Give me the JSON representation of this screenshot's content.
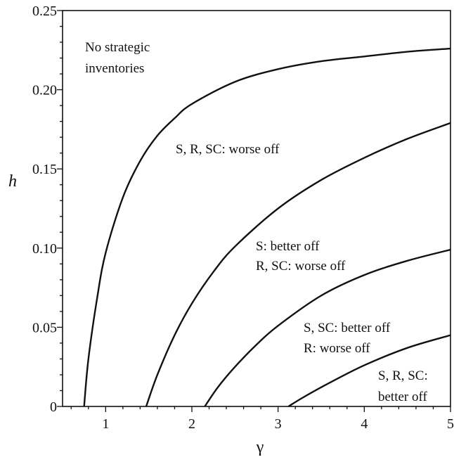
{
  "chart_data": {
    "type": "line",
    "title": "",
    "xlabel": "γ",
    "ylabel": "h",
    "xlim": [
      0.5,
      5
    ],
    "ylim": [
      0,
      0.25
    ],
    "grid": false,
    "x_ticks": [
      {
        "value": 1,
        "label": "1"
      },
      {
        "value": 2,
        "label": "2"
      },
      {
        "value": 3,
        "label": "3"
      },
      {
        "value": 4,
        "label": "4"
      },
      {
        "value": 5,
        "label": "5"
      }
    ],
    "y_ticks": [
      {
        "value": 0,
        "label": "0"
      },
      {
        "value": 0.05,
        "label": "0.05"
      },
      {
        "value": 0.1,
        "label": "0.10"
      },
      {
        "value": 0.15,
        "label": "0.15"
      },
      {
        "value": 0.2,
        "label": "0.20"
      },
      {
        "value": 0.25,
        "label": "0.25"
      }
    ],
    "series": [
      {
        "x": [
          0.75,
          0.8,
          0.9,
          1.0,
          1.2,
          1.4,
          1.6,
          1.8,
          2.0,
          2.5,
          3.0,
          3.5,
          4.0,
          4.5,
          5.0
        ],
        "y": [
          0.0,
          0.03,
          0.068,
          0.097,
          0.132,
          0.155,
          0.171,
          0.182,
          0.191,
          0.205,
          0.213,
          0.218,
          0.221,
          0.224,
          0.226
        ]
      },
      {
        "x": [
          1.47,
          1.6,
          1.8,
          2.0,
          2.25,
          2.5,
          3.0,
          3.5,
          4.0,
          4.5,
          5.0
        ],
        "y": [
          0.0,
          0.02,
          0.045,
          0.065,
          0.085,
          0.101,
          0.125,
          0.143,
          0.157,
          0.169,
          0.179
        ]
      },
      {
        "x": [
          2.15,
          2.3,
          2.5,
          2.75,
          3.0,
          3.5,
          4.0,
          4.5,
          5.0
        ],
        "y": [
          0.0,
          0.012,
          0.025,
          0.039,
          0.051,
          0.07,
          0.083,
          0.092,
          0.099
        ]
      },
      {
        "x": [
          3.12,
          3.3,
          3.6,
          4.0,
          4.5,
          5.0
        ],
        "y": [
          0.0,
          0.006,
          0.015,
          0.026,
          0.037,
          0.045
        ]
      }
    ],
    "annotations": {
      "region1": [
        "No strategic",
        "inventories"
      ],
      "region2": [
        "S, R, SC: worse off"
      ],
      "region3": [
        "S: better off",
        "R, SC: worse off"
      ],
      "region4": [
        "S, SC: better off",
        "R: worse off"
      ],
      "region5": [
        "S, R, SC:",
        "better off"
      ]
    }
  }
}
